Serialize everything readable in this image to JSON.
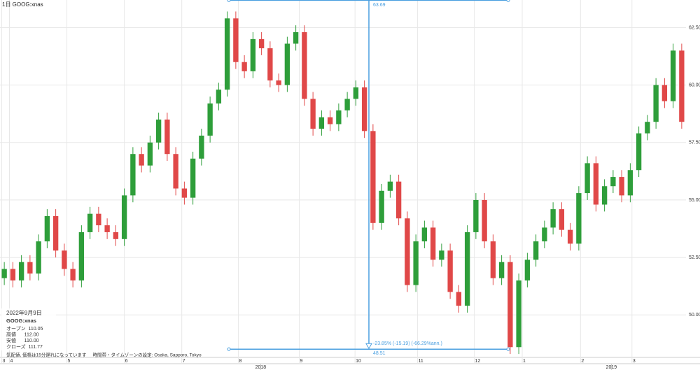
{
  "chart_data": {
    "type": "candlestick",
    "title": "1日   GOOG:xnas",
    "up_color": "#2e9e3a",
    "down_color": "#e04848",
    "grid": true,
    "xlim": [
      0,
      80
    ],
    "ylim": [
      48.0,
      63.7
    ],
    "yticks": [
      {
        "value": 50,
        "label": "50.00"
      },
      {
        "value": 52.5,
        "label": "52.50"
      },
      {
        "value": 55,
        "label": "55.00"
      },
      {
        "value": 57.5,
        "label": "57.50"
      },
      {
        "value": 60,
        "label": "60.00"
      },
      {
        "value": 62.5,
        "label": "62.50"
      }
    ],
    "xticks": [
      {
        "value": 0.2,
        "label": "3"
      },
      {
        "value": 1.1,
        "label": "4"
      },
      {
        "value": 7.8,
        "label": "5"
      },
      {
        "value": 14.5,
        "label": "6"
      },
      {
        "value": 21.2,
        "label": "7"
      },
      {
        "value": 27.8,
        "label": "8"
      },
      {
        "value": 34.9,
        "label": "9"
      },
      {
        "value": 41.4,
        "label": "10"
      },
      {
        "value": 48.7,
        "label": "11"
      },
      {
        "value": 55.3,
        "label": "12"
      },
      {
        "value": 60.9,
        "label": "1"
      },
      {
        "value": 67.7,
        "label": "2"
      },
      {
        "value": 73.7,
        "label": "3"
      }
    ],
    "year_ticks": [
      {
        "value": 30.4,
        "label": "2018"
      },
      {
        "value": 71.3,
        "label": "2019"
      }
    ],
    "open": [
      51.6,
      52.0,
      51.5,
      52.3,
      51.8,
      53.2,
      54.3,
      52.8,
      52.0,
      51.5,
      53.6,
      54.4,
      53.9,
      53.6,
      53.3,
      55.2,
      57.0,
      56.5,
      57.5,
      58.5,
      57.0,
      55.5,
      55.1,
      56.8,
      57.8,
      59.2,
      59.8,
      62.9,
      61.0,
      60.6,
      62.0,
      61.6,
      60.2,
      60.0,
      61.8,
      62.3,
      59.4,
      58.1,
      58.6,
      58.3,
      58.9,
      59.4,
      59.9,
      58.0,
      54.0,
      55.4,
      55.8,
      54.2,
      51.3,
      53.2,
      53.8,
      52.4,
      52.8,
      51.0,
      50.4,
      53.6,
      55.0,
      53.2,
      51.6,
      52.3,
      48.6,
      51.5,
      52.4,
      53.2,
      53.8,
      54.6,
      53.7,
      53.1,
      55.3,
      56.6,
      54.8,
      55.6,
      56.0,
      55.2,
      56.3,
      57.9,
      58.4,
      60.0,
      59.3,
      61.5
    ],
    "high": [
      52.3,
      52.3,
      52.6,
      52.6,
      53.5,
      54.6,
      54.6,
      53.1,
      52.3,
      53.9,
      54.7,
      54.7,
      54.2,
      53.9,
      55.5,
      57.3,
      57.3,
      57.8,
      58.8,
      58.8,
      57.3,
      55.8,
      57.1,
      58.1,
      59.5,
      60.1,
      63.2,
      63.2,
      61.3,
      62.3,
      62.3,
      61.9,
      60.5,
      62.1,
      62.6,
      62.6,
      59.7,
      58.9,
      58.9,
      59.2,
      59.7,
      60.2,
      60.2,
      58.3,
      55.7,
      56.1,
      56.1,
      54.5,
      53.5,
      54.1,
      54.1,
      53.1,
      53.1,
      51.3,
      53.9,
      55.3,
      55.3,
      53.5,
      52.6,
      52.6,
      51.8,
      52.7,
      53.5,
      54.1,
      54.9,
      54.9,
      54.0,
      55.6,
      56.9,
      56.9,
      55.9,
      56.3,
      56.3,
      56.6,
      58.2,
      58.7,
      60.3,
      60.3,
      61.8,
      61.8
    ],
    "low": [
      51.3,
      51.2,
      51.2,
      51.5,
      51.5,
      52.9,
      52.5,
      51.7,
      51.2,
      51.2,
      53.3,
      53.6,
      53.3,
      53.0,
      53.0,
      54.9,
      56.2,
      56.2,
      57.2,
      56.7,
      55.2,
      54.8,
      54.8,
      56.5,
      57.5,
      58.9,
      59.5,
      60.7,
      60.3,
      60.3,
      61.3,
      59.9,
      59.7,
      59.7,
      61.5,
      59.1,
      57.8,
      57.8,
      58.0,
      58.0,
      58.6,
      59.1,
      57.7,
      53.7,
      53.7,
      55.1,
      53.9,
      51.0,
      51.0,
      52.9,
      52.1,
      52.1,
      50.7,
      50.1,
      50.1,
      53.3,
      52.9,
      51.3,
      51.3,
      48.3,
      48.3,
      51.2,
      52.1,
      52.9,
      53.5,
      53.4,
      52.8,
      52.8,
      55.0,
      54.5,
      54.5,
      55.3,
      54.9,
      54.9,
      56.0,
      57.6,
      58.1,
      59.0,
      59.0,
      58.1
    ],
    "close": [
      52.0,
      51.5,
      52.3,
      51.8,
      53.2,
      54.3,
      52.8,
      52.0,
      51.5,
      53.6,
      54.4,
      53.9,
      53.6,
      53.3,
      55.2,
      57.0,
      56.5,
      57.5,
      58.5,
      57.0,
      55.5,
      55.1,
      56.8,
      57.8,
      59.2,
      59.8,
      62.9,
      61.0,
      60.6,
      62.0,
      61.6,
      60.2,
      60.0,
      61.8,
      62.3,
      59.4,
      58.1,
      58.6,
      58.3,
      58.9,
      59.4,
      59.9,
      58.0,
      54.0,
      55.4,
      55.8,
      54.2,
      51.3,
      53.2,
      53.8,
      52.4,
      52.8,
      51.0,
      50.4,
      53.6,
      55.0,
      53.2,
      51.6,
      52.3,
      48.6,
      51.5,
      52.4,
      53.2,
      53.8,
      54.6,
      53.7,
      53.1,
      55.3,
      56.6,
      54.8,
      55.6,
      56.0,
      55.2,
      56.3,
      57.9,
      58.4,
      60.0,
      59.3,
      61.5,
      58.4
    ],
    "measure": {
      "start": 63.69,
      "end": 48.51,
      "change": "-23.85% (-15.19) (-66.29%ann.)",
      "color": "#4a9fe0"
    },
    "info": {
      "date": "2022年9月9日",
      "symbol": "GOOG:xnas",
      "rows": [
        "オープン  110.05",
        "高値      112.00",
        "安値      110.00",
        "クローズ  111.77"
      ]
    },
    "footer": "気配値, 価格は15分遅れになっています     時間帯・タイムゾーンの設定: Osaka, Sapporo, Tokyo"
  }
}
